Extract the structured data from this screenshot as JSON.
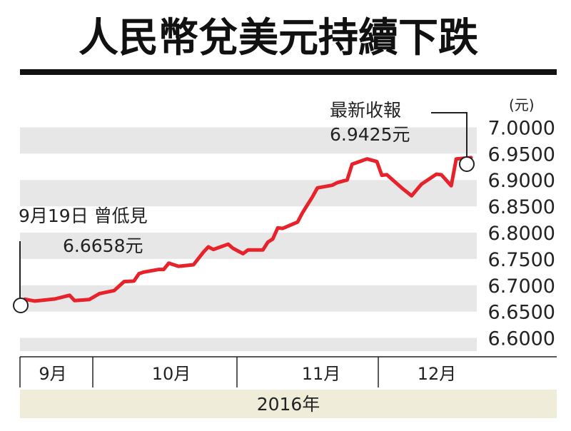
{
  "chart_data": {
    "type": "line",
    "title": "人民幣兌美元持續下跌",
    "unit": "(元)",
    "ylim": [
      6.575,
      7.025
    ],
    "yticks": [
      "7.0000",
      "6.9500",
      "6.9000",
      "6.8500",
      "6.8000",
      "6.7500",
      "6.7000",
      "6.6500",
      "6.6000"
    ],
    "x_period_labels": [
      "9月",
      "10月",
      "11月",
      "12月"
    ],
    "year_label": "2016年",
    "grid": "alternating horizontal bands",
    "series": [
      {
        "color": "#e8222a",
        "x": [
          "2016-09-19",
          "2016-09-20",
          "2016-09-22",
          "2016-09-26",
          "2016-09-29",
          "2016-09-30",
          "2016-10-03",
          "2016-10-05",
          "2016-10-08",
          "2016-10-10",
          "2016-10-12",
          "2016-10-13",
          "2016-10-14",
          "2016-10-17",
          "2016-10-18",
          "2016-10-19",
          "2016-10-21",
          "2016-10-24",
          "2016-10-26",
          "2016-10-27",
          "2016-10-28",
          "2016-10-31",
          "2016-11-01",
          "2016-11-03",
          "2016-11-04",
          "2016-11-07",
          "2016-11-08",
          "2016-11-09",
          "2016-11-10",
          "2016-11-11",
          "2016-11-14",
          "2016-11-15",
          "2016-11-17",
          "2016-11-18",
          "2016-11-21",
          "2016-11-22",
          "2016-11-24",
          "2016-11-25",
          "2016-11-28",
          "2016-11-30",
          "2016-12-01",
          "2016-12-02",
          "2016-12-05",
          "2016-12-07",
          "2016-12-09",
          "2016-12-12",
          "2016-12-13",
          "2016-12-15",
          "2016-12-16",
          "2016-12-19"
        ],
        "values": [
          6.6658,
          6.6735,
          6.67,
          6.674,
          6.681,
          6.671,
          6.673,
          6.684,
          6.69,
          6.707,
          6.708,
          6.722,
          6.725,
          6.73,
          6.73,
          6.742,
          6.736,
          6.739,
          6.763,
          6.773,
          6.768,
          6.778,
          6.77,
          6.76,
          6.767,
          6.767,
          6.782,
          6.788,
          6.809,
          6.808,
          6.82,
          6.838,
          6.868,
          6.885,
          6.89,
          6.895,
          6.9,
          6.93,
          6.94,
          6.935,
          6.909,
          6.91,
          6.885,
          6.87,
          6.892,
          6.911,
          6.91,
          6.889,
          6.94,
          6.9425
        ]
      }
    ],
    "annotations": [
      {
        "line1": "9月19日 曾低見",
        "line2": "6.6658元",
        "at": "2016-09-19"
      },
      {
        "line1": "最新收報",
        "line2": "6.9425元",
        "at": "2016-12-19"
      }
    ]
  }
}
